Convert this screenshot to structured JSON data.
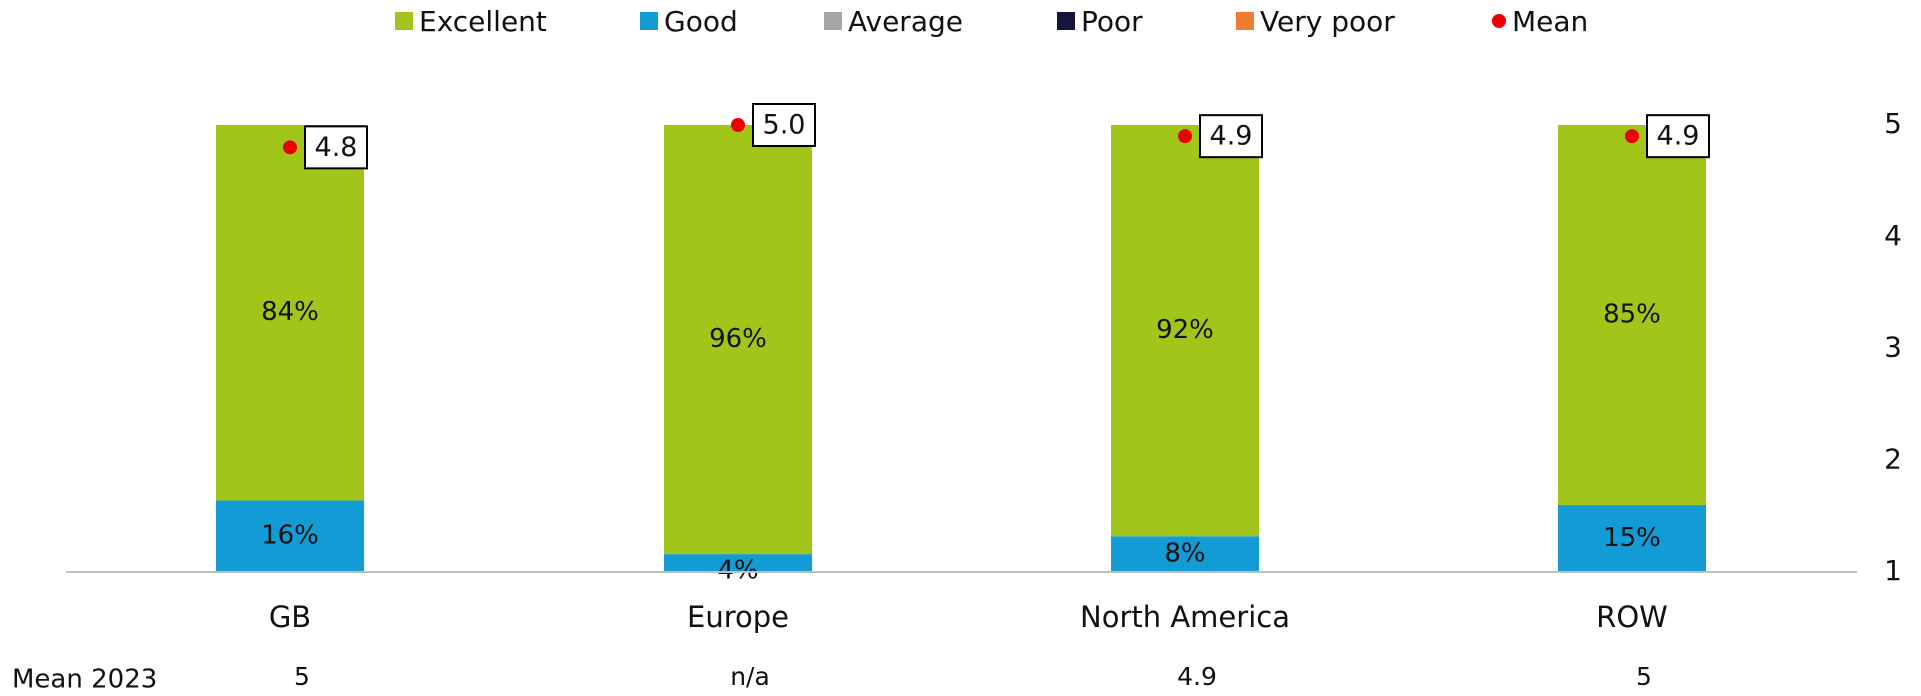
{
  "chart_data": {
    "type": "stacked_bar",
    "categories": [
      "GB",
      "Europe",
      "North America",
      "ROW"
    ],
    "ylim": [
      0,
      100
    ],
    "y2lim": [
      1,
      5
    ],
    "y2ticks": [
      1,
      2,
      3,
      4,
      5
    ],
    "series": [
      {
        "name": "Excellent",
        "color": "#a2c51a",
        "values": [
          84,
          96,
          92,
          85
        ],
        "value_labels": [
          "84%",
          "96%",
          "92%",
          "85%"
        ]
      },
      {
        "name": "Good",
        "color": "#139bd6",
        "values": [
          16,
          4,
          8,
          15
        ],
        "value_labels": [
          "16%",
          "4%",
          "8%",
          "15%"
        ]
      },
      {
        "name": "Average",
        "color": "#a6a6a6",
        "values": [
          0,
          0,
          0,
          0
        ]
      },
      {
        "name": "Poor",
        "color": "#14143c",
        "values": [
          0,
          0,
          0,
          0
        ]
      },
      {
        "name": "Very poor",
        "color": "#ee7d31",
        "values": [
          0,
          0,
          0,
          0
        ]
      },
      {
        "name": "Mean",
        "color": "#ee0000",
        "axis": "y2",
        "values": [
          4.8,
          5.0,
          4.9,
          4.9
        ],
        "value_labels": [
          "4.8",
          "5.0",
          "4.9",
          "4.9"
        ]
      }
    ],
    "mean_2023": {
      "label": "Mean 2023",
      "values": [
        "5",
        "n/a",
        "4.9",
        "5"
      ]
    }
  }
}
